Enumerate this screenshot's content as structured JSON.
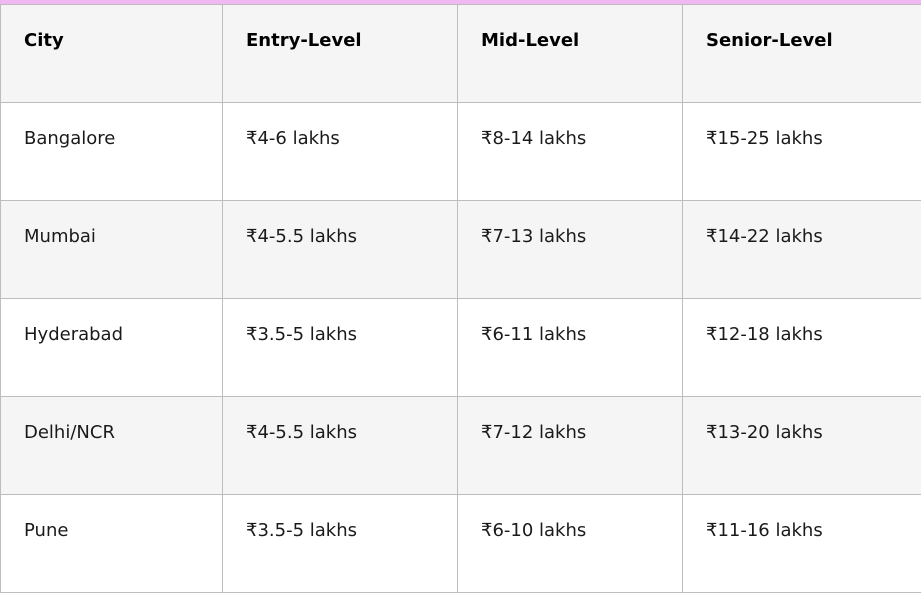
{
  "accent_color": "#efb8f0",
  "table": {
    "headers": [
      "City",
      "Entry-Level",
      "Mid-Level",
      "Senior-Level"
    ],
    "rows": [
      [
        "Bangalore",
        "₹4-6 lakhs",
        "₹8-14 lakhs",
        "₹15-25 lakhs"
      ],
      [
        "Mumbai",
        "₹4-5.5 lakhs",
        "₹7-13 lakhs",
        "₹14-22 lakhs"
      ],
      [
        "Hyderabad",
        "₹3.5-5 lakhs",
        "₹6-11 lakhs",
        "₹12-18 lakhs"
      ],
      [
        "Delhi/NCR",
        "₹4-5.5 lakhs",
        "₹7-12 lakhs",
        "₹13-20 lakhs"
      ],
      [
        "Pune",
        "₹3.5-5 lakhs",
        "₹6-10 lakhs",
        "₹11-16 lakhs"
      ]
    ]
  }
}
